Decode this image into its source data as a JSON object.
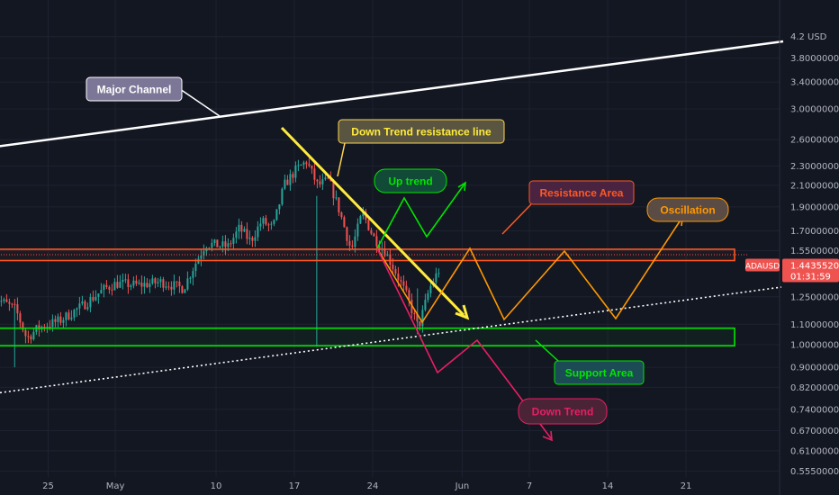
{
  "colors": {
    "background": "#131722",
    "grid": "#1e2230",
    "up_candle": "#26a69a",
    "down_candle": "#ef5350",
    "major_channel": "#ffffff",
    "down_trend_line": "#ffeb3b",
    "resistance": "#ff5722",
    "support": "#00e600",
    "oscillation": "#ff9800",
    "up_trend": "#00e600",
    "down_trend": "#e91e63",
    "price_badge": "#ef5350"
  },
  "price_badge": {
    "symbol": "ADAUSD",
    "price": "1.44355202",
    "countdown": "01:31:59",
    "value": 1.44355202
  },
  "chart_data": {
    "type": "candlestick",
    "symbol": "ADAUSD",
    "y_scale": "log",
    "y_unit_label": "USD",
    "ylim": [
      0.53,
      4.25
    ],
    "x_range": [
      "2021-04-20",
      "2021-05-30"
    ],
    "x_ticks": [
      "25",
      "May",
      "10",
      "17",
      "24",
      "Jun",
      "7",
      "14",
      "21"
    ],
    "y_ticks": [
      {
        "value": 4.2,
        "label": "4.2"
      },
      {
        "value": 3.8,
        "label": "3.80000000"
      },
      {
        "value": 3.4,
        "label": "3.40000000"
      },
      {
        "value": 3.0,
        "label": "3.00000000"
      },
      {
        "value": 2.6,
        "label": "2.60000000"
      },
      {
        "value": 2.3,
        "label": "2.30000000"
      },
      {
        "value": 2.1,
        "label": "2.10000000"
      },
      {
        "value": 1.9,
        "label": "1.90000000"
      },
      {
        "value": 1.7,
        "label": "1.70000000"
      },
      {
        "value": 1.55,
        "label": "1.55000000"
      },
      {
        "value": 1.25,
        "label": "1.25000000"
      },
      {
        "value": 1.1,
        "label": "1.10000000"
      },
      {
        "value": 1.0,
        "label": "1.00000000"
      },
      {
        "value": 0.9,
        "label": "0.90000000"
      },
      {
        "value": 0.82,
        "label": "0.82000000"
      },
      {
        "value": 0.74,
        "label": "0.74000000"
      },
      {
        "value": 0.67,
        "label": "0.67000000"
      },
      {
        "value": 0.61,
        "label": "0.61000000"
      },
      {
        "value": 0.555,
        "label": "0.55500000"
      }
    ],
    "price_path": [
      [
        "2021-04-20",
        1.25
      ],
      [
        "2021-04-22",
        1.18
      ],
      [
        "2021-04-23",
        1.03
      ],
      [
        "2021-04-24",
        1.08
      ],
      [
        "2021-04-26",
        1.12
      ],
      [
        "2021-04-28",
        1.2
      ],
      [
        "2021-04-30",
        1.3
      ],
      [
        "2021-05-01",
        1.33
      ],
      [
        "2021-05-03",
        1.32
      ],
      [
        "2021-05-05",
        1.34
      ],
      [
        "2021-05-07",
        1.3
      ],
      [
        "2021-05-08",
        1.45
      ],
      [
        "2021-05-09",
        1.6
      ],
      [
        "2021-05-11",
        1.58
      ],
      [
        "2021-05-12",
        1.72
      ],
      [
        "2021-05-13",
        1.62
      ],
      [
        "2021-05-14",
        1.78
      ],
      [
        "2021-05-15",
        1.72
      ],
      [
        "2021-05-16",
        2.1
      ],
      [
        "2021-05-17",
        2.25
      ],
      [
        "2021-05-18",
        2.35
      ],
      [
        "2021-05-19",
        2.1
      ],
      [
        "2021-05-20",
        2.15
      ],
      [
        "2021-05-21",
        1.85
      ],
      [
        "2021-05-22",
        1.55
      ],
      [
        "2021-05-23",
        1.85
      ],
      [
        "2021-05-24",
        1.65
      ],
      [
        "2021-05-25",
        1.55
      ],
      [
        "2021-05-26",
        1.4
      ],
      [
        "2021-05-27",
        1.25
      ],
      [
        "2021-05-28",
        1.08
      ],
      [
        "2021-05-29",
        1.3
      ],
      [
        "2021-05-30",
        1.44
      ]
    ],
    "annotations": [
      {
        "text": "Major Channel"
      },
      {
        "text": "Down Trend resistance line"
      },
      {
        "text": "Up trend"
      },
      {
        "text": "Resistance Area"
      },
      {
        "text": "Oscillation"
      },
      {
        "text": "Support Area"
      },
      {
        "text": "Down Trend"
      }
    ],
    "zones": [
      {
        "name": "Resistance Area",
        "from": 1.48,
        "to": 1.56
      },
      {
        "name": "Support Area",
        "from": 0.995,
        "to": 1.08
      }
    ]
  }
}
